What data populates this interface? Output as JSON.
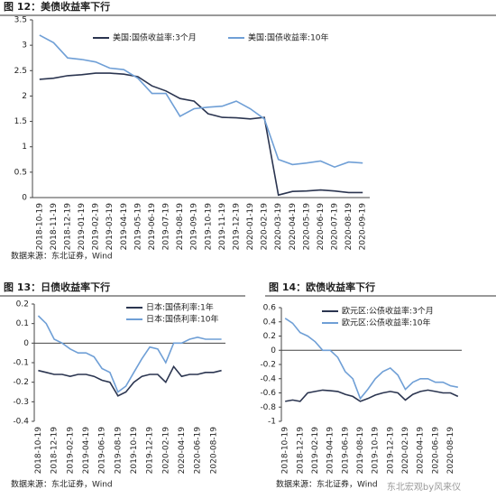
{
  "chart_data": [
    {
      "type": "line",
      "title": "图 12：美债收益率下行",
      "source": "数据来源：东北证券，Wind",
      "legend": "top",
      "categories": [
        "2018-10-19",
        "2018-11-19",
        "2018-12-19",
        "2019-01-19",
        "2019-02-19",
        "2019-03-19",
        "2019-04-19",
        "2019-05-19",
        "2019-06-19",
        "2019-07-19",
        "2019-08-19",
        "2019-09-19",
        "2019-10-19",
        "2019-11-19",
        "2019-12-19",
        "2020-01-19",
        "2020-02-19",
        "2020-03-19",
        "2020-04-19",
        "2020-05-19",
        "2020-06-19",
        "2020-07-19",
        "2020-08-19",
        "2020-09-19"
      ],
      "series": [
        {
          "name": "美国:国债收益率:3个月",
          "color": "#2b3550",
          "values": [
            2.33,
            2.35,
            2.4,
            2.42,
            2.45,
            2.45,
            2.43,
            2.38,
            2.2,
            2.1,
            1.95,
            1.9,
            1.65,
            1.58,
            1.57,
            1.55,
            1.58,
            0.05,
            0.12,
            0.13,
            0.15,
            0.13,
            0.1,
            0.1
          ]
        },
        {
          "name": "美国:国债收益率:10年",
          "color": "#6f9fd6",
          "values": [
            3.2,
            3.05,
            2.75,
            2.72,
            2.67,
            2.55,
            2.52,
            2.35,
            2.05,
            2.05,
            1.6,
            1.75,
            1.78,
            1.8,
            1.9,
            1.75,
            1.55,
            0.75,
            0.65,
            0.68,
            0.72,
            0.6,
            0.7,
            0.68
          ]
        }
      ],
      "ylim": [
        0,
        3.5
      ],
      "yticks": [
        0,
        0.5,
        1,
        1.5,
        2,
        2.5,
        3,
        3.5
      ],
      "grid": false
    },
    {
      "type": "line",
      "title": "图 13：日债收益率下行",
      "source": "数据来源：东北证券，Wind",
      "legend": "upper-right",
      "categories": [
        "2018-10-19",
        null,
        "2018-12-19",
        null,
        "2019-02-19",
        null,
        "2019-04-19",
        null,
        "2019-06-19",
        null,
        "2019-08-19",
        null,
        "2019-10-19",
        null,
        "2019-12-19",
        null,
        "2020-02-19",
        null,
        "2020-04-19",
        null,
        "2020-06-19",
        null,
        "2020-08-19",
        null
      ],
      "series": [
        {
          "name": "日本:国债利率:1年",
          "color": "#2b3550",
          "values": [
            -0.14,
            -0.15,
            -0.16,
            -0.16,
            -0.17,
            -0.16,
            -0.16,
            -0.17,
            -0.19,
            -0.2,
            -0.27,
            -0.25,
            -0.2,
            -0.17,
            -0.16,
            -0.16,
            -0.2,
            -0.12,
            -0.17,
            -0.16,
            -0.16,
            -0.15,
            -0.15,
            -0.14
          ]
        },
        {
          "name": "日本:国债利率:10年",
          "color": "#6f9fd6",
          "values": [
            0.14,
            0.1,
            0.02,
            0.0,
            -0.03,
            -0.05,
            -0.05,
            -0.07,
            -0.13,
            -0.15,
            -0.25,
            -0.22,
            -0.15,
            -0.08,
            -0.02,
            -0.03,
            -0.1,
            0.0,
            0.0,
            0.02,
            0.03,
            0.02,
            0.02,
            0.02
          ]
        }
      ],
      "ylim": [
        -0.4,
        0.2
      ],
      "yticks": [
        -0.4,
        -0.3,
        -0.2,
        -0.1,
        0,
        0.1,
        0.2
      ],
      "grid": false
    },
    {
      "type": "line",
      "title": "图 14：欧债收益率下行",
      "source": "数据来源：东北证券，Wind",
      "legend": "top",
      "categories": [
        "2018-10-19",
        null,
        "2018-12-19",
        null,
        "2019-02-19",
        null,
        "2019-04-19",
        null,
        "2019-06-19",
        null,
        "2019-08-19",
        null,
        "2019-10-19",
        null,
        "2019-12-19",
        null,
        "2020-02-19",
        null,
        "2020-04-19",
        null,
        "2020-06-19",
        null,
        "2020-08-19",
        null
      ],
      "series": [
        {
          "name": "欧元区:公债收益率:3个月",
          "color": "#2b3550",
          "values": [
            -0.72,
            -0.7,
            -0.72,
            -0.6,
            -0.58,
            -0.56,
            -0.57,
            -0.58,
            -0.62,
            -0.65,
            -0.72,
            -0.68,
            -0.63,
            -0.6,
            -0.58,
            -0.6,
            -0.7,
            -0.62,
            -0.58,
            -0.56,
            -0.58,
            -0.6,
            -0.6,
            -0.65
          ]
        },
        {
          "name": "欧元区:公债收益率:10年",
          "color": "#6f9fd6",
          "values": [
            0.45,
            0.38,
            0.25,
            0.2,
            0.12,
            0.0,
            0.0,
            -0.1,
            -0.3,
            -0.4,
            -0.68,
            -0.55,
            -0.4,
            -0.3,
            -0.25,
            -0.35,
            -0.55,
            -0.45,
            -0.4,
            -0.4,
            -0.45,
            -0.45,
            -0.5,
            -0.52
          ]
        }
      ],
      "ylim": [
        -1,
        0.6
      ],
      "yticks": [
        -1,
        -0.8,
        -0.6,
        -0.4,
        -0.2,
        0,
        0.2,
        0.4,
        0.6
      ],
      "grid": false
    }
  ],
  "watermark": "东北宏观by风来仪"
}
